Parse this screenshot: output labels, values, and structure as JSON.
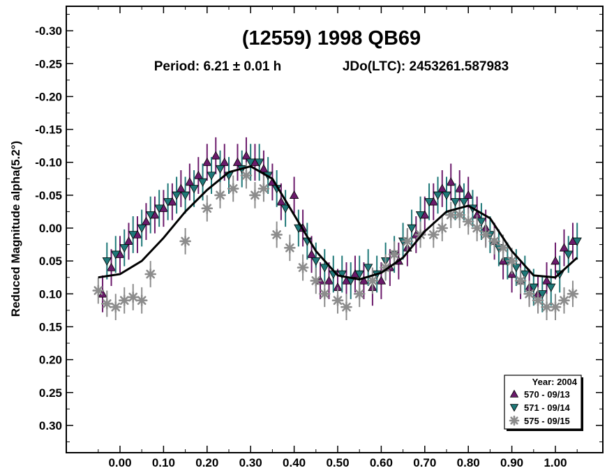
{
  "chart_data": {
    "type": "scatter",
    "title": "(12559) 1998 QB69",
    "subtitle_period": "Period: 6.21 ± 0.01 h",
    "subtitle_epoch": "JDo(LTC): 2453261.587983",
    "ylabel": "Reduced Magnitude alpha(5.2°)",
    "xlabel": "",
    "xlim": [
      -0.1,
      1.1
    ],
    "ylim": [
      -0.35,
      0.35
    ],
    "y_inverted": true,
    "x_ticks": [
      "0.00",
      "0.10",
      "0.20",
      "0.30",
      "0.40",
      "0.50",
      "0.60",
      "0.70",
      "0.80",
      "0.90",
      "1.00"
    ],
    "y_ticks": [
      "-0.30",
      "-0.25",
      "-0.20",
      "-0.15",
      "-0.10",
      "-0.05",
      "0.00",
      "0.05",
      "0.10",
      "0.15",
      "0.20",
      "0.25",
      "0.30"
    ],
    "grid": false,
    "legend": {
      "title": "Year: 2004",
      "placement": "bottom-right",
      "entries": [
        {
          "label": "570 - 09/13",
          "marker": "triangle-up",
          "color": "#6b1a6b"
        },
        {
          "label": "571 - 09/14",
          "marker": "triangle-down",
          "color": "#1e7878"
        },
        {
          "label": "575 - 09/15",
          "marker": "asterisk",
          "color": "#8c8c8c"
        }
      ]
    },
    "fit_curve": {
      "x": [
        -0.05,
        0.0,
        0.05,
        0.1,
        0.15,
        0.2,
        0.25,
        0.3,
        0.35,
        0.4,
        0.45,
        0.5,
        0.55,
        0.6,
        0.65,
        0.7,
        0.75,
        0.8,
        0.85,
        0.9,
        0.95,
        1.0,
        1.05
      ],
      "y": [
        0.075,
        0.07,
        0.05,
        0.015,
        -0.025,
        -0.058,
        -0.085,
        -0.094,
        -0.075,
        -0.02,
        0.035,
        0.072,
        0.078,
        0.068,
        0.045,
        0.005,
        -0.025,
        -0.034,
        -0.015,
        0.035,
        0.072,
        0.075,
        0.045
      ],
      "color": "#000000"
    },
    "series": [
      {
        "name": "570 - 09/13",
        "marker": "triangle-up",
        "color": "#6b1a6b",
        "error": 0.028,
        "x": [
          -0.04,
          -0.02,
          0.0,
          0.02,
          0.04,
          0.06,
          0.08,
          0.1,
          0.12,
          0.14,
          0.16,
          0.18,
          0.2,
          0.22,
          0.24,
          0.27,
          0.29,
          0.31,
          0.33,
          0.35,
          0.37,
          0.4,
          0.42,
          0.44,
          0.46,
          0.48,
          0.5,
          0.52,
          0.54,
          0.56,
          0.58,
          0.6,
          0.62,
          0.64,
          0.66,
          0.68,
          0.7,
          0.72,
          0.74,
          0.76,
          0.78,
          0.8,
          0.82,
          0.84,
          0.86,
          0.88,
          0.9,
          0.92,
          0.94,
          0.96,
          0.98,
          1.0,
          1.02,
          1.04
        ],
        "y": [
          0.1,
          0.06,
          0.04,
          0.02,
          0.01,
          -0.01,
          -0.02,
          -0.03,
          -0.04,
          -0.06,
          -0.07,
          -0.08,
          -0.1,
          -0.11,
          -0.1,
          -0.1,
          -0.11,
          -0.1,
          -0.09,
          -0.07,
          -0.04,
          -0.05,
          0.0,
          0.04,
          0.08,
          0.08,
          0.09,
          0.08,
          0.07,
          0.08,
          0.09,
          0.08,
          0.06,
          0.05,
          0.03,
          0.01,
          -0.02,
          -0.04,
          -0.06,
          -0.07,
          -0.06,
          -0.05,
          -0.02,
          0.0,
          0.02,
          0.05,
          0.07,
          0.08,
          0.09,
          0.1,
          0.08,
          0.05,
          0.03,
          0.02
        ]
      },
      {
        "name": "571 - 09/14",
        "marker": "triangle-down",
        "color": "#1e7878",
        "error": 0.028,
        "x": [
          -0.03,
          -0.01,
          0.01,
          0.03,
          0.05,
          0.07,
          0.09,
          0.11,
          0.13,
          0.15,
          0.17,
          0.19,
          0.21,
          0.23,
          0.25,
          0.28,
          0.3,
          0.32,
          0.34,
          0.36,
          0.38,
          0.41,
          0.43,
          0.45,
          0.47,
          0.49,
          0.51,
          0.53,
          0.55,
          0.57,
          0.59,
          0.61,
          0.63,
          0.65,
          0.67,
          0.69,
          0.71,
          0.73,
          0.75,
          0.77,
          0.79,
          0.81,
          0.83,
          0.85,
          0.87,
          0.89,
          0.91,
          0.93,
          0.95,
          0.97,
          0.99,
          1.01,
          1.03,
          1.05
        ],
        "y": [
          0.05,
          0.04,
          0.03,
          0.01,
          0.0,
          -0.02,
          -0.03,
          -0.04,
          -0.05,
          -0.05,
          -0.06,
          -0.07,
          -0.08,
          -0.09,
          -0.08,
          -0.09,
          -0.1,
          -0.1,
          -0.08,
          -0.06,
          -0.03,
          0.0,
          0.02,
          0.05,
          0.06,
          0.07,
          0.07,
          0.08,
          0.07,
          0.06,
          0.07,
          0.05,
          0.04,
          0.02,
          0.0,
          -0.02,
          -0.04,
          -0.05,
          -0.05,
          -0.04,
          -0.04,
          -0.03,
          -0.01,
          0.01,
          0.03,
          0.05,
          0.06,
          0.07,
          0.09,
          0.1,
          0.09,
          0.07,
          0.04,
          0.02
        ]
      },
      {
        "name": "575 - 09/15",
        "marker": "asterisk",
        "color": "#8c8c8c",
        "error": 0.02,
        "x": [
          -0.05,
          -0.03,
          -0.01,
          0.01,
          0.03,
          0.05,
          0.07,
          0.15,
          0.2,
          0.23,
          0.26,
          0.29,
          0.31,
          0.33,
          0.36,
          0.39,
          0.42,
          0.45,
          0.47,
          0.5,
          0.52,
          0.55,
          0.58,
          0.61,
          0.63,
          0.66,
          0.69,
          0.72,
          0.74,
          0.76,
          0.78,
          0.8,
          0.82,
          0.84,
          0.86,
          0.88,
          0.9,
          0.92,
          0.94,
          0.96,
          0.98,
          1.0,
          1.02,
          1.04
        ],
        "y": [
          0.095,
          0.115,
          0.12,
          0.11,
          0.105,
          0.11,
          0.07,
          0.02,
          -0.03,
          -0.05,
          -0.06,
          -0.08,
          -0.05,
          -0.06,
          0.01,
          0.03,
          0.06,
          0.08,
          0.1,
          0.11,
          0.12,
          0.1,
          0.08,
          0.06,
          0.04,
          0.02,
          0.01,
          0.01,
          0.0,
          -0.02,
          -0.02,
          -0.01,
          0.0,
          0.01,
          0.02,
          0.03,
          0.05,
          0.08,
          0.1,
          0.11,
          0.12,
          0.12,
          0.11,
          0.1
        ]
      }
    ]
  }
}
